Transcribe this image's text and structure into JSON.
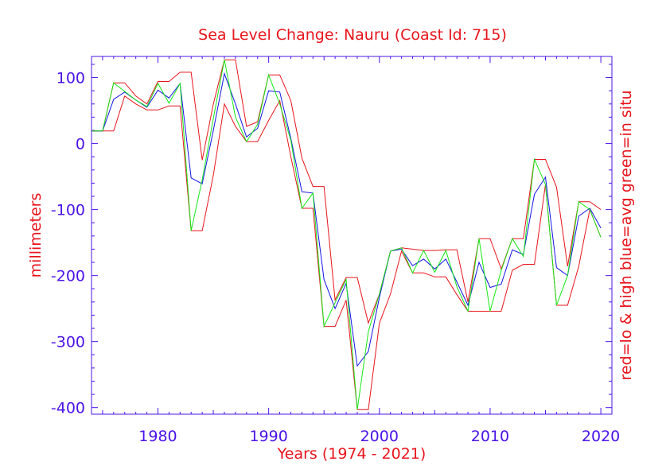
{
  "chart_data": {
    "type": "line",
    "title": "Sea Level Change: Nauru (Coast Id: 715)",
    "xlabel": "Years (1974 - 2021)",
    "ylabel": "millimeters",
    "right_label": "red=lo & high  blue=avg  green=in situ",
    "xlim": [
      1974,
      2021
    ],
    "ylim": [
      -410,
      132
    ],
    "x_ticks": [
      1980,
      1990,
      2000,
      2010,
      2020
    ],
    "y_ticks": [
      100,
      0,
      -100,
      -200,
      -300,
      -400
    ],
    "x_tick_labels": [
      "1980",
      "1990",
      "2000",
      "2010",
      "2020"
    ],
    "y_tick_labels": [
      "100",
      "0",
      "-100",
      "-200",
      "-300",
      "-400"
    ],
    "x": [
      1974,
      1975,
      1976,
      1977,
      1978,
      1979,
      1980,
      1981,
      1982,
      1983,
      1984,
      1985,
      1986,
      1987,
      1988,
      1989,
      1990,
      1991,
      1992,
      1993,
      1994,
      1995,
      1996,
      1997,
      1998,
      1999,
      2000,
      2001,
      2002,
      2003,
      2004,
      2005,
      2006,
      2007,
      2008,
      2009,
      2010,
      2011,
      2012,
      2013,
      2014,
      2015,
      2016,
      2017,
      2018,
      2019,
      2020
    ],
    "series": [
      {
        "name": "high",
        "color": "#e8141c",
        "values": [
          19,
          19,
          92,
          92,
          72,
          60,
          94,
          94,
          108,
          108,
          -25,
          60,
          127,
          127,
          26,
          33,
          104,
          104,
          65,
          -22,
          -65,
          -65,
          -237,
          -203,
          -203,
          -272,
          -228,
          -163,
          -158,
          -160,
          -162,
          -162,
          -161,
          -161,
          -240,
          -144,
          -144,
          -190,
          -144,
          -144,
          -24,
          -24,
          -66,
          -186,
          -88,
          -88,
          -100
        ]
      },
      {
        "name": "low",
        "color": "#e8141c",
        "values": [
          19,
          19,
          19,
          72,
          60,
          51,
          51,
          57,
          57,
          -132,
          -132,
          -48,
          60,
          26,
          3,
          3,
          35,
          65,
          -20,
          -98,
          -98,
          -277,
          -277,
          -237,
          -403,
          -403,
          -272,
          -228,
          -163,
          -196,
          -196,
          -202,
          -202,
          -229,
          -254,
          -254,
          -254,
          -254,
          -192,
          -183,
          -183,
          -62,
          -245,
          -245,
          -186,
          -100,
          -142
        ]
      },
      {
        "name": "average",
        "color": "#1414e8",
        "values": [
          19,
          19,
          67,
          78,
          66,
          55,
          81,
          69,
          91,
          -52,
          -61,
          20,
          106,
          60,
          10,
          23,
          80,
          78,
          8,
          -73,
          -75,
          -206,
          -250,
          -212,
          -337,
          -315,
          -233,
          -163,
          -160,
          -185,
          -175,
          -190,
          -175,
          -210,
          -245,
          -180,
          -218,
          -213,
          -161,
          -168,
          -77,
          -51,
          -188,
          -200,
          -110,
          -98,
          -128
        ]
      },
      {
        "name": "in situ",
        "color": "#14e814",
        "values": [
          19,
          19,
          92,
          79,
          66,
          56,
          91,
          61,
          91,
          -132,
          -55,
          38,
          127,
          40,
          3,
          29,
          104,
          60,
          5,
          -98,
          -75,
          -277,
          -241,
          -206,
          -403,
          -285,
          -228,
          -163,
          -158,
          -196,
          -162,
          -195,
          -162,
          -217,
          -254,
          -144,
          -254,
          -192,
          -144,
          -171,
          -24,
          -62,
          -245,
          -200,
          -88,
          -100,
          -142
        ]
      }
    ]
  }
}
